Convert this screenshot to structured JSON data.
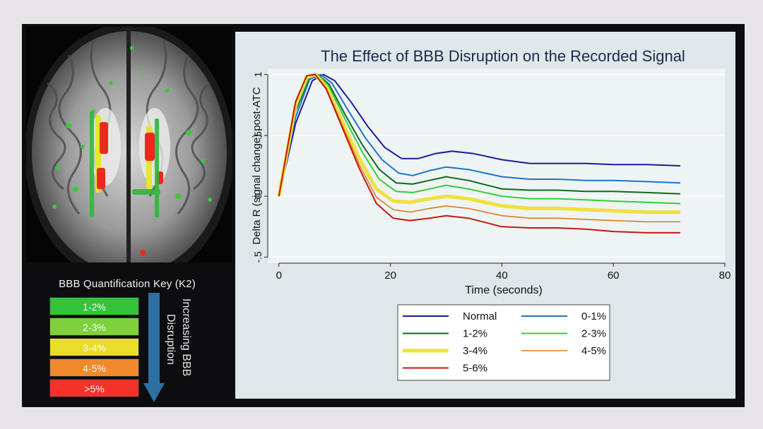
{
  "key": {
    "title": "BBB Quantification Key (K2)",
    "items": [
      {
        "label": "1-2%",
        "color": "#33c43a"
      },
      {
        "label": "2-3%",
        "color": "#7fd13b"
      },
      {
        "label": "3-4%",
        "color": "#e8de2a"
      },
      {
        "label": "4-5%",
        "color": "#f08a2c"
      },
      {
        "label": ">5%",
        "color": "#f5322a"
      }
    ],
    "arrow_label_lines": [
      "Increasing BBB",
      "Disruption"
    ],
    "arrow_color": "#2c6fa0"
  },
  "chart_data": {
    "type": "line",
    "title": "The Effect of BBB Disruption on the Recorded Signal",
    "xlabel": "Time (seconds)",
    "ylabel": "Delta R (signal change) post-ATC",
    "xlim": [
      -2,
      80
    ],
    "ylim": [
      -0.55,
      1.05
    ],
    "x_ticks": [
      0,
      20,
      40,
      60,
      80
    ],
    "x_tick_labels": [
      "0",
      "20",
      "40",
      "60",
      "80"
    ],
    "y_ticks": [
      -0.5,
      0,
      0.5,
      1
    ],
    "y_tick_labels": [
      "-.5",
      "0",
      ".5",
      "1"
    ],
    "grid": true,
    "legend_placement": "bottom",
    "series": [
      {
        "name": "Normal",
        "color": "#1c1c9a",
        "width": 2,
        "points": [
          [
            0,
            0
          ],
          [
            3,
            0.6
          ],
          [
            6,
            0.95
          ],
          [
            8,
            1.0
          ],
          [
            10,
            0.95
          ],
          [
            13,
            0.77
          ],
          [
            16,
            0.57
          ],
          [
            19,
            0.4
          ],
          [
            22,
            0.31
          ],
          [
            25,
            0.31
          ],
          [
            28,
            0.35
          ],
          [
            31,
            0.37
          ],
          [
            35,
            0.35
          ],
          [
            40,
            0.3
          ],
          [
            45,
            0.27
          ],
          [
            50,
            0.27
          ],
          [
            55,
            0.27
          ],
          [
            60,
            0.26
          ],
          [
            66,
            0.26
          ],
          [
            72,
            0.25
          ]
        ]
      },
      {
        "name": "0-1%",
        "color": "#1e73c8",
        "width": 2,
        "points": [
          [
            0,
            0
          ],
          [
            3,
            0.65
          ],
          [
            5.5,
            0.96
          ],
          [
            7.5,
            1.0
          ],
          [
            9.5,
            0.93
          ],
          [
            12.5,
            0.7
          ],
          [
            15.5,
            0.48
          ],
          [
            18.5,
            0.3
          ],
          [
            21.5,
            0.19
          ],
          [
            24,
            0.17
          ],
          [
            27,
            0.21
          ],
          [
            30,
            0.24
          ],
          [
            34,
            0.22
          ],
          [
            40,
            0.16
          ],
          [
            45,
            0.14
          ],
          [
            50,
            0.14
          ],
          [
            55,
            0.13
          ],
          [
            60,
            0.13
          ],
          [
            66,
            0.12
          ],
          [
            72,
            0.11
          ]
        ]
      },
      {
        "name": "1-2%",
        "color": "#0f6a1f",
        "width": 2,
        "points": [
          [
            0,
            0
          ],
          [
            3,
            0.7
          ],
          [
            5.5,
            0.98
          ],
          [
            7,
            1.0
          ],
          [
            9,
            0.92
          ],
          [
            12,
            0.66
          ],
          [
            15,
            0.42
          ],
          [
            18,
            0.22
          ],
          [
            21,
            0.11
          ],
          [
            24,
            0.1
          ],
          [
            27,
            0.13
          ],
          [
            30,
            0.16
          ],
          [
            34,
            0.13
          ],
          [
            40,
            0.06
          ],
          [
            45,
            0.05
          ],
          [
            50,
            0.05
          ],
          [
            55,
            0.04
          ],
          [
            60,
            0.04
          ],
          [
            66,
            0.03
          ],
          [
            72,
            0.02
          ]
        ]
      },
      {
        "name": "2-3%",
        "color": "#2ed13a",
        "width": 2,
        "points": [
          [
            0,
            0
          ],
          [
            3,
            0.72
          ],
          [
            5.5,
            0.99
          ],
          [
            7,
            1.0
          ],
          [
            9,
            0.9
          ],
          [
            12,
            0.62
          ],
          [
            15,
            0.36
          ],
          [
            18,
            0.14
          ],
          [
            21,
            0.04
          ],
          [
            24,
            0.03
          ],
          [
            27,
            0.06
          ],
          [
            30,
            0.09
          ],
          [
            34,
            0.06
          ],
          [
            40,
            0.0
          ],
          [
            45,
            -0.02
          ],
          [
            50,
            -0.02
          ],
          [
            55,
            -0.03
          ],
          [
            60,
            -0.04
          ],
          [
            66,
            -0.05
          ],
          [
            72,
            -0.06
          ]
        ]
      },
      {
        "name": "3-4%",
        "color": "#f0e040",
        "width": 5,
        "points": [
          [
            0,
            0
          ],
          [
            3,
            0.75
          ],
          [
            5,
            0.98
          ],
          [
            6.5,
            1.0
          ],
          [
            8.5,
            0.9
          ],
          [
            11.5,
            0.6
          ],
          [
            14.5,
            0.3
          ],
          [
            17.5,
            0.06
          ],
          [
            20.5,
            -0.04
          ],
          [
            23.5,
            -0.05
          ],
          [
            27,
            -0.02
          ],
          [
            30,
            0.0
          ],
          [
            34,
            -0.02
          ],
          [
            40,
            -0.08
          ],
          [
            45,
            -0.1
          ],
          [
            50,
            -0.1
          ],
          [
            55,
            -0.11
          ],
          [
            60,
            -0.12
          ],
          [
            66,
            -0.13
          ],
          [
            72,
            -0.13
          ]
        ]
      },
      {
        "name": "4-5%",
        "color": "#e27a1f",
        "width": 1.6,
        "points": [
          [
            0,
            0
          ],
          [
            3,
            0.77
          ],
          [
            5,
            0.99
          ],
          [
            6.5,
            1.0
          ],
          [
            8.5,
            0.89
          ],
          [
            11.5,
            0.57
          ],
          [
            14.5,
            0.25
          ],
          [
            17.5,
            -0.01
          ],
          [
            20.5,
            -0.11
          ],
          [
            23.5,
            -0.13
          ],
          [
            27,
            -0.1
          ],
          [
            30,
            -0.08
          ],
          [
            34,
            -0.1
          ],
          [
            40,
            -0.16
          ],
          [
            45,
            -0.18
          ],
          [
            50,
            -0.18
          ],
          [
            55,
            -0.19
          ],
          [
            60,
            -0.2
          ],
          [
            66,
            -0.21
          ],
          [
            72,
            -0.21
          ]
        ]
      },
      {
        "name": "5-6%",
        "color": "#c21a12",
        "width": 2,
        "points": [
          [
            0,
            0
          ],
          [
            3,
            0.78
          ],
          [
            5,
            0.99
          ],
          [
            6.5,
            1.0
          ],
          [
            8.5,
            0.88
          ],
          [
            11.5,
            0.55
          ],
          [
            14.5,
            0.22
          ],
          [
            17.5,
            -0.06
          ],
          [
            20.5,
            -0.18
          ],
          [
            23.5,
            -0.2
          ],
          [
            27,
            -0.18
          ],
          [
            30,
            -0.16
          ],
          [
            34,
            -0.18
          ],
          [
            40,
            -0.25
          ],
          [
            45,
            -0.26
          ],
          [
            50,
            -0.26
          ],
          [
            55,
            -0.27
          ],
          [
            60,
            -0.29
          ],
          [
            66,
            -0.3
          ],
          [
            72,
            -0.3
          ]
        ]
      }
    ]
  }
}
